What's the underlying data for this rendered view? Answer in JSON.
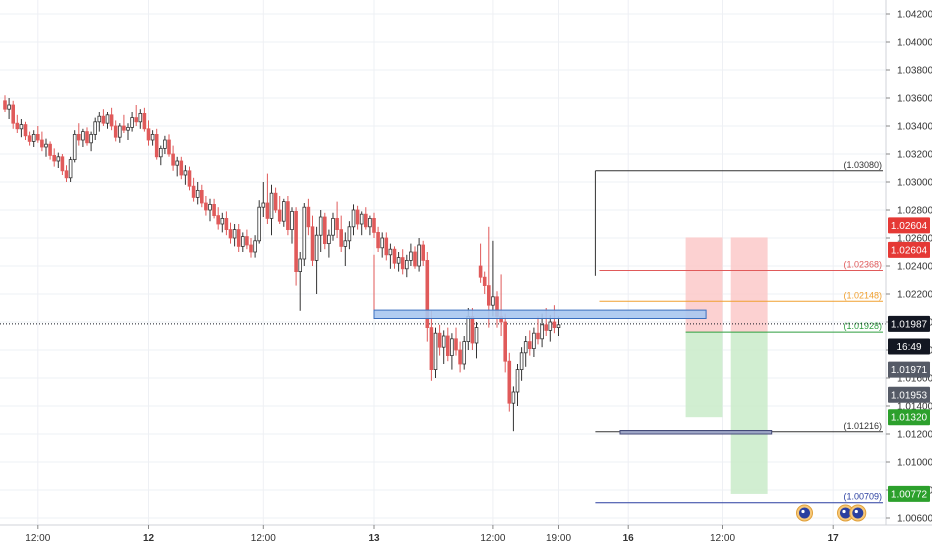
{
  "chart_data": {
    "type": "candlestick",
    "y_axis": {
      "min": 1.0055,
      "max": 1.043,
      "ticks": [
        "1.04200",
        "1.04000",
        "1.03800",
        "1.03600",
        "1.03400",
        "1.03200",
        "1.03000",
        "1.02800",
        "1.02600",
        "1.02400",
        "1.02200",
        "1.02000",
        "1.01800",
        "1.01600",
        "1.01400",
        "1.01200",
        "1.01000",
        "1.00800",
        "1.00600"
      ],
      "tick_values": [
        1.042,
        1.04,
        1.038,
        1.036,
        1.034,
        1.032,
        1.03,
        1.028,
        1.026,
        1.024,
        1.022,
        1.02,
        1.018,
        1.016,
        1.014,
        1.012,
        1.01,
        1.008,
        1.006
      ]
    },
    "x_axis": {
      "labels": [
        "12:00",
        "12",
        "12:00",
        "13",
        "12:00",
        "19:00",
        "16",
        "12:00",
        "17"
      ],
      "bold": [
        false,
        true,
        false,
        true,
        false,
        false,
        true,
        false,
        true
      ],
      "bar_index": [
        8,
        35,
        63,
        90,
        119,
        135,
        152,
        175,
        202
      ]
    },
    "candles": [
      [
        1.0358,
        1.0362,
        1.035,
        1.0352
      ],
      [
        1.0352,
        1.036,
        1.0345,
        1.0355
      ],
      [
        1.0355,
        1.0358,
        1.0338,
        1.0342
      ],
      [
        1.0342,
        1.0348,
        1.0335,
        1.0338
      ],
      [
        1.0338,
        1.0345,
        1.0332,
        1.0341
      ],
      [
        1.0341,
        1.0343,
        1.033,
        1.0333
      ],
      [
        1.0333,
        1.0336,
        1.0326,
        1.0329
      ],
      [
        1.0329,
        1.0337,
        1.0325,
        1.0334
      ],
      [
        1.0334,
        1.034,
        1.0328,
        1.033
      ],
      [
        1.033,
        1.0336,
        1.0322,
        1.0325
      ],
      [
        1.0325,
        1.0331,
        1.0318,
        1.0327
      ],
      [
        1.0327,
        1.0329,
        1.0316,
        1.0319
      ],
      [
        1.0319,
        1.0324,
        1.0311,
        1.0315
      ],
      [
        1.0315,
        1.0321,
        1.031,
        1.0318
      ],
      [
        1.0318,
        1.032,
        1.0305,
        1.0308
      ],
      [
        1.0308,
        1.0312,
        1.03,
        1.0303
      ],
      [
        1.0303,
        1.0318,
        1.03,
        1.0316
      ],
      [
        1.0316,
        1.0337,
        1.0314,
        1.0334
      ],
      [
        1.0334,
        1.0342,
        1.0326,
        1.033
      ],
      [
        1.033,
        1.0338,
        1.0325,
        1.0336
      ],
      [
        1.0336,
        1.0339,
        1.0326,
        1.0328
      ],
      [
        1.0328,
        1.0336,
        1.0322,
        1.0334
      ],
      [
        1.0334,
        1.0346,
        1.033,
        1.0343
      ],
      [
        1.0343,
        1.035,
        1.0336,
        1.0347
      ],
      [
        1.0347,
        1.0352,
        1.034,
        1.0342
      ],
      [
        1.0342,
        1.035,
        1.0338,
        1.0348
      ],
      [
        1.0348,
        1.0353,
        1.0337,
        1.034
      ],
      [
        1.034,
        1.0344,
        1.0329,
        1.0332
      ],
      [
        1.0332,
        1.0342,
        1.0328,
        1.034
      ],
      [
        1.034,
        1.0348,
        1.0335,
        1.0337
      ],
      [
        1.0337,
        1.0342,
        1.033,
        1.0339
      ],
      [
        1.0339,
        1.035,
        1.0336,
        1.0346
      ],
      [
        1.0346,
        1.0355,
        1.034,
        1.0343
      ],
      [
        1.0343,
        1.0352,
        1.0338,
        1.0349
      ],
      [
        1.0349,
        1.0353,
        1.0336,
        1.0338
      ],
      [
        1.0338,
        1.0344,
        1.0326,
        1.033
      ],
      [
        1.033,
        1.0337,
        1.0326,
        1.0334
      ],
      [
        1.0334,
        1.0338,
        1.0316,
        1.0318
      ],
      [
        1.0318,
        1.0326,
        1.0312,
        1.0324
      ],
      [
        1.0324,
        1.0333,
        1.032,
        1.033
      ],
      [
        1.033,
        1.0334,
        1.0318,
        1.032
      ],
      [
        1.032,
        1.0326,
        1.0308,
        1.0312
      ],
      [
        1.0312,
        1.0318,
        1.0304,
        1.0315
      ],
      [
        1.0315,
        1.0318,
        1.0302,
        1.0305
      ],
      [
        1.0305,
        1.0312,
        1.0298,
        1.0308
      ],
      [
        1.0308,
        1.0311,
        1.0294,
        1.0297
      ],
      [
        1.0297,
        1.0303,
        1.0286,
        1.0289
      ],
      [
        1.0289,
        1.03,
        1.0284,
        1.0294
      ],
      [
        1.0294,
        1.0298,
        1.0282,
        1.0285
      ],
      [
        1.0285,
        1.029,
        1.0276,
        1.028
      ],
      [
        1.028,
        1.0288,
        1.0272,
        1.0284
      ],
      [
        1.0284,
        1.0288,
        1.0274,
        1.0276
      ],
      [
        1.0276,
        1.0282,
        1.0266,
        1.027
      ],
      [
        1.027,
        1.0278,
        1.0264,
        1.0274
      ],
      [
        1.0274,
        1.0279,
        1.0262,
        1.0266
      ],
      [
        1.0266,
        1.0271,
        1.0256,
        1.026
      ],
      [
        1.026,
        1.027,
        1.0254,
        1.0266
      ],
      [
        1.0266,
        1.027,
        1.025,
        1.0254
      ],
      [
        1.0254,
        1.0264,
        1.025,
        1.0261
      ],
      [
        1.0261,
        1.0266,
        1.0252,
        1.0255
      ],
      [
        1.0255,
        1.026,
        1.0246,
        1.025
      ],
      [
        1.025,
        1.0262,
        1.0246,
        1.0258
      ],
      [
        1.0258,
        1.0287,
        1.0256,
        1.0282
      ],
      [
        1.0282,
        1.03,
        1.0275,
        1.0285
      ],
      [
        1.0285,
        1.0306,
        1.027,
        1.0274
      ],
      [
        1.0274,
        1.0298,
        1.0262,
        1.0292
      ],
      [
        1.0292,
        1.0296,
        1.0278,
        1.028
      ],
      [
        1.028,
        1.029,
        1.027,
        1.0272
      ],
      [
        1.0272,
        1.0288,
        1.0268,
        1.0286
      ],
      [
        1.0286,
        1.029,
        1.0262,
        1.0266
      ],
      [
        1.0266,
        1.0282,
        1.0256,
        1.0279
      ],
      [
        1.0279,
        1.0282,
        1.0226,
        1.0236
      ],
      [
        1.0236,
        1.025,
        1.0208,
        1.0245
      ],
      [
        1.0245,
        1.0285,
        1.024,
        1.0282
      ],
      [
        1.0282,
        1.0288,
        1.0262,
        1.0268
      ],
      [
        1.0268,
        1.0276,
        1.024,
        1.0244
      ],
      [
        1.0244,
        1.0268,
        1.022,
        1.0262
      ],
      [
        1.0262,
        1.028,
        1.025,
        1.0275
      ],
      [
        1.0275,
        1.0278,
        1.0252,
        1.0256
      ],
      [
        1.0256,
        1.0266,
        1.0246,
        1.0262
      ],
      [
        1.0262,
        1.0278,
        1.0258,
        1.0274
      ],
      [
        1.0274,
        1.0286,
        1.026,
        1.0266
      ],
      [
        1.0266,
        1.0276,
        1.025,
        1.0254
      ],
      [
        1.0254,
        1.0264,
        1.024,
        1.0258
      ],
      [
        1.0258,
        1.0272,
        1.0252,
        1.0268
      ],
      [
        1.0268,
        1.0284,
        1.0262,
        1.028
      ],
      [
        1.028,
        1.0283,
        1.0266,
        1.027
      ],
      [
        1.027,
        1.0279,
        1.0262,
        1.0277
      ],
      [
        1.0277,
        1.0282,
        1.0266,
        1.0268
      ],
      [
        1.0268,
        1.0276,
        1.0262,
        1.0274
      ],
      [
        1.0274,
        1.0278,
        1.026,
        1.0264
      ],
      [
        1.0264,
        1.0268,
        1.025,
        1.0253
      ],
      [
        1.0253,
        1.0264,
        1.0246,
        1.026
      ],
      [
        1.026,
        1.0264,
        1.0244,
        1.0248
      ],
      [
        1.0248,
        1.0256,
        1.0238,
        1.0252
      ],
      [
        1.0252,
        1.0254,
        1.0238,
        1.0242
      ],
      [
        1.0242,
        1.025,
        1.0236,
        1.0246
      ],
      [
        1.0246,
        1.0252,
        1.0234,
        1.0238
      ],
      [
        1.0238,
        1.0248,
        1.0232,
        1.0244
      ],
      [
        1.0244,
        1.0256,
        1.024,
        1.025
      ],
      [
        1.025,
        1.0254,
        1.0238,
        1.024
      ],
      [
        1.024,
        1.026,
        1.0236,
        1.0255
      ],
      [
        1.0255,
        1.0258,
        1.024,
        1.0244
      ],
      [
        1.0244,
        1.025,
        1.0186,
        1.0196
      ],
      [
        1.0196,
        1.0208,
        1.0158,
        1.0166
      ],
      [
        1.0166,
        1.0196,
        1.016,
        1.0192
      ],
      [
        1.0192,
        1.0198,
        1.0176,
        1.0182
      ],
      [
        1.0182,
        1.0194,
        1.017,
        1.019
      ],
      [
        1.019,
        1.0196,
        1.0172,
        1.0176
      ],
      [
        1.0176,
        1.0192,
        1.0166,
        1.0188
      ],
      [
        1.0188,
        1.0196,
        1.0176,
        1.018
      ],
      [
        1.018,
        1.0186,
        1.0164,
        1.017
      ],
      [
        1.017,
        1.019,
        1.0166,
        1.0186
      ],
      [
        1.0186,
        1.021,
        1.018,
        1.0204
      ],
      [
        1.0204,
        1.021,
        1.018,
        1.0185
      ],
      [
        1.0185,
        1.02,
        1.0174,
        1.0196
      ],
      [
        1.024,
        1.0256,
        1.0228,
        1.0232
      ],
      [
        1.0232,
        1.0236,
        1.022,
        1.0226
      ],
      [
        1.0226,
        1.0268,
        1.0196,
        1.0212
      ],
      [
        1.0212,
        1.0258,
        1.0204,
        1.0218
      ],
      [
        1.0218,
        1.0222,
        1.0196,
        1.0204
      ],
      [
        1.0204,
        1.0234,
        1.019,
        1.02
      ],
      [
        1.02,
        1.0206,
        1.0164,
        1.0172
      ],
      [
        1.0172,
        1.0178,
        1.0136,
        1.0142
      ],
      [
        1.0142,
        1.0154,
        1.0122,
        1.015
      ],
      [
        1.015,
        1.017,
        1.014,
        1.0166
      ],
      [
        1.0166,
        1.0182,
        1.0158,
        1.0178
      ],
      [
        1.0178,
        1.019,
        1.0168,
        1.0186
      ],
      [
        1.0186,
        1.0194,
        1.0176,
        1.0181
      ],
      [
        1.0181,
        1.0196,
        1.0175,
        1.0192
      ],
      [
        1.0192,
        1.0204,
        1.0184,
        1.0188
      ],
      [
        1.0188,
        1.0206,
        1.0182,
        1.0198
      ],
      [
        1.0198,
        1.021,
        1.019,
        1.0194
      ],
      [
        1.0194,
        1.0205,
        1.0186,
        1.02
      ],
      [
        1.02,
        1.0212,
        1.0192,
        1.0196
      ],
      [
        1.0196,
        1.0204,
        1.019,
        1.0198
      ]
    ],
    "candle_slots": [
      0,
      1,
      2,
      3,
      4,
      5,
      6,
      7,
      8,
      9,
      10,
      11,
      12,
      13,
      14,
      15,
      16,
      17,
      18,
      19,
      20,
      21,
      22,
      23,
      24,
      25,
      26,
      27,
      28,
      29,
      30,
      31,
      32,
      33,
      34,
      35,
      36,
      37,
      38,
      39,
      40,
      41,
      42,
      43,
      44,
      45,
      46,
      47,
      48,
      49,
      50,
      51,
      52,
      53,
      54,
      55,
      56,
      57,
      58,
      59,
      60,
      61,
      62,
      63,
      64,
      65,
      66,
      67,
      68,
      69,
      70,
      71,
      72,
      73,
      74,
      75,
      76,
      77,
      78,
      79,
      80,
      81,
      82,
      83,
      84,
      85,
      86,
      87,
      88,
      89,
      90,
      91,
      92,
      93,
      94,
      95,
      96,
      97,
      98,
      99,
      100,
      101,
      102,
      103,
      104,
      105,
      106,
      107,
      108,
      109,
      110,
      111,
      112,
      113,
      114,
      115,
      116,
      117,
      118,
      119,
      120,
      121,
      122,
      123,
      124,
      125,
      126,
      127,
      128,
      129,
      130,
      131,
      132,
      133,
      134,
      135,
      136,
      137,
      138,
      139,
      140,
      141,
      142,
      143,
      144,
      145,
      146,
      147,
      148,
      149,
      150,
      151,
      152,
      153,
      154,
      155,
      156,
      157,
      158,
      159,
      160,
      161,
      162,
      163,
      164,
      165,
      166,
      167,
      168,
      169,
      170,
      171,
      172,
      173,
      174,
      175,
      176,
      177,
      178,
      179,
      180,
      181,
      182,
      183,
      184,
      185,
      186,
      187,
      188,
      189,
      190,
      191,
      192,
      193,
      194,
      195,
      196,
      197,
      198,
      199,
      200,
      201,
      202,
      203,
      204,
      205,
      206,
      207,
      208,
      209,
      210,
      211,
      212,
      213,
      214,
      215,
      216,
      217,
      218,
      219,
      220,
      221,
      222,
      223,
      224,
      225,
      226,
      227,
      228,
      229,
      230,
      231,
      232,
      233,
      234,
      235
    ],
    "drawings": {
      "rectangles": [
        {
          "name": "resistance-zone",
          "price_top": 1.02085,
          "price_bottom": 1.02025,
          "start_bar": 90,
          "end_bar": 171,
          "fill": "#a9c6ef",
          "stroke": "#3b6fbf"
        },
        {
          "name": "support-zone",
          "price_top": 1.01225,
          "price_bottom": 1.012,
          "start_bar": 150,
          "end_bar": 187,
          "fill": "#9aa3c8",
          "stroke": "#444a78"
        },
        {
          "name": "stop-zone-1",
          "price_top": 1.02604,
          "price_bottom": 1.01928,
          "start_bar": 166,
          "end_bar": 175,
          "fill": "#fbc9c9",
          "stroke": "none"
        },
        {
          "name": "target-zone-1",
          "price_top": 1.01928,
          "price_bottom": 1.0132,
          "start_bar": 166,
          "end_bar": 175,
          "fill": "#c9ebc9",
          "stroke": "none"
        },
        {
          "name": "stop-zone-2",
          "price_top": 1.02604,
          "price_bottom": 1.01928,
          "start_bar": 177,
          "end_bar": 186,
          "fill": "#fbc9c9",
          "stroke": "none"
        },
        {
          "name": "target-zone-2",
          "price_top": 1.01928,
          "price_bottom": 1.00772,
          "start_bar": 177,
          "end_bar": 186,
          "fill": "#c9ebc9",
          "stroke": "none"
        }
      ],
      "levels": [
        {
          "name": "level-1-03080",
          "price": 1.0308,
          "label": "(1.03080)",
          "color": "#333333",
          "start_bar": 144
        },
        {
          "name": "level-1-02368",
          "price": 1.02368,
          "label": "(1.02368)",
          "color": "#e05a5a",
          "start_bar": 145
        },
        {
          "name": "level-1-02148",
          "price": 1.02148,
          "label": "(1.02148)",
          "color": "#f0a030",
          "start_bar": 145
        },
        {
          "name": "level-1-01928",
          "price": 1.01928,
          "label": "(1.01928)",
          "color": "#2e9e3f",
          "start_bar": 166
        },
        {
          "name": "level-1-01216",
          "price": 1.01216,
          "label": "(1.01216)",
          "color": "#333333",
          "start_bar": 144
        },
        {
          "name": "level-1-00709",
          "price": 1.00709,
          "label": "(1.00709)",
          "color": "#2a3fa0",
          "start_bar": 144
        }
      ],
      "vertical_line": {
        "bar": 144,
        "price_top": 1.0308,
        "price_bottom": 1.0233
      },
      "zone_left_line": {
        "bar": 90,
        "price_top": 1.0248,
        "price_bottom": 1.02085
      },
      "current_price_line": {
        "price": 1.01987
      }
    },
    "price_tags": [
      {
        "name": "tag-1-02604-a",
        "text": "1.02604",
        "price": 1.0269,
        "bg": "#e53935"
      },
      {
        "name": "tag-1-02604-b",
        "text": "1.02604",
        "price": 1.02515,
        "bg": "#e53935"
      },
      {
        "name": "tag-1-01987",
        "text": "1.01987",
        "price": 1.01987,
        "bg": "#131722"
      },
      {
        "name": "tag-countdown",
        "text": "16:49",
        "price": 1.01825,
        "bg": "#131722"
      },
      {
        "name": "tag-1-01971",
        "text": "1.01971",
        "price": 1.0166,
        "bg": "#555a66"
      },
      {
        "name": "tag-1-01953",
        "text": "1.01953",
        "price": 1.0148,
        "bg": "#555a66"
      },
      {
        "name": "tag-1-01320",
        "text": "1.01320",
        "price": 1.0132,
        "bg": "#2ca02c"
      },
      {
        "name": "tag-1-00772",
        "text": "1.00772",
        "price": 1.00772,
        "bg": "#2ca02c"
      }
    ],
    "event_markers": [
      {
        "name": "event-marker-1",
        "bar": 195
      },
      {
        "name": "event-marker-2",
        "bar": 205
      },
      {
        "name": "event-marker-3",
        "bar": 208
      }
    ],
    "colors": {
      "up": "#ffffff",
      "down": "#e05a5a",
      "wick": "#333333",
      "grid": "#eef0f4",
      "axis_text": "#333333",
      "current_line": "#131722"
    }
  }
}
